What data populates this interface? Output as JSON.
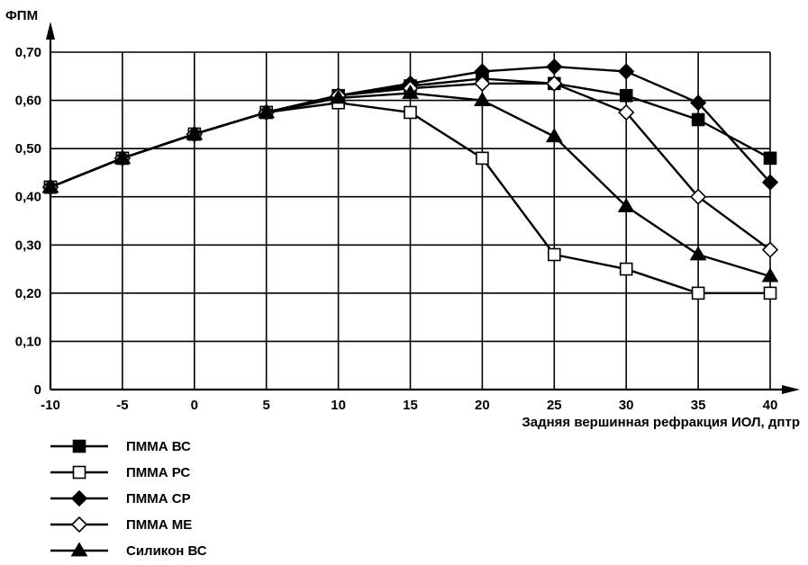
{
  "chart_data": {
    "type": "line",
    "title": "",
    "ylabel": "ФПМ",
    "xlabel": "Задняя вершинная рефракция ИОЛ, дптр",
    "x": [
      -10,
      -5,
      0,
      5,
      10,
      15,
      20,
      25,
      30,
      35,
      40
    ],
    "x_tick_labels": [
      "-10",
      "-5",
      "0",
      "5",
      "10",
      "15",
      "20",
      "25",
      "30",
      "35",
      "40"
    ],
    "y_ticks": [
      0,
      0.1,
      0.2,
      0.3,
      0.4,
      0.5,
      0.6,
      0.7
    ],
    "y_tick_labels": [
      "0",
      "0,10",
      "0,20",
      "0,30",
      "0,40",
      "0,50",
      "0,60",
      "0,70"
    ],
    "xlim": [
      -10,
      40
    ],
    "ylim": [
      0,
      0.7
    ],
    "grid": true,
    "legend_position": "bottom-left",
    "line_color": "#000000",
    "series": [
      {
        "name": "ПММА ВС",
        "marker": "square-filled",
        "values": [
          0.42,
          0.48,
          0.53,
          0.575,
          0.61,
          0.63,
          0.645,
          0.635,
          0.61,
          0.56,
          0.48
        ]
      },
      {
        "name": "ПММА РС",
        "marker": "square-open",
        "values": [
          0.42,
          0.48,
          0.53,
          0.575,
          0.595,
          0.575,
          0.48,
          0.28,
          0.25,
          0.2,
          0.2
        ]
      },
      {
        "name": "ПММА СР",
        "marker": "diamond-filled",
        "values": [
          0.42,
          0.48,
          0.53,
          0.575,
          0.61,
          0.635,
          0.66,
          0.67,
          0.66,
          0.595,
          0.43
        ]
      },
      {
        "name": "ПММА МЕ",
        "marker": "diamond-open",
        "values": [
          0.42,
          0.48,
          0.53,
          0.575,
          0.61,
          0.625,
          0.635,
          0.635,
          0.575,
          0.4,
          0.29
        ]
      },
      {
        "name": "Силикон ВС",
        "marker": "triangle-filled",
        "values": [
          0.42,
          0.48,
          0.53,
          0.575,
          0.605,
          0.615,
          0.6,
          0.525,
          0.38,
          0.28,
          0.235
        ]
      }
    ]
  }
}
